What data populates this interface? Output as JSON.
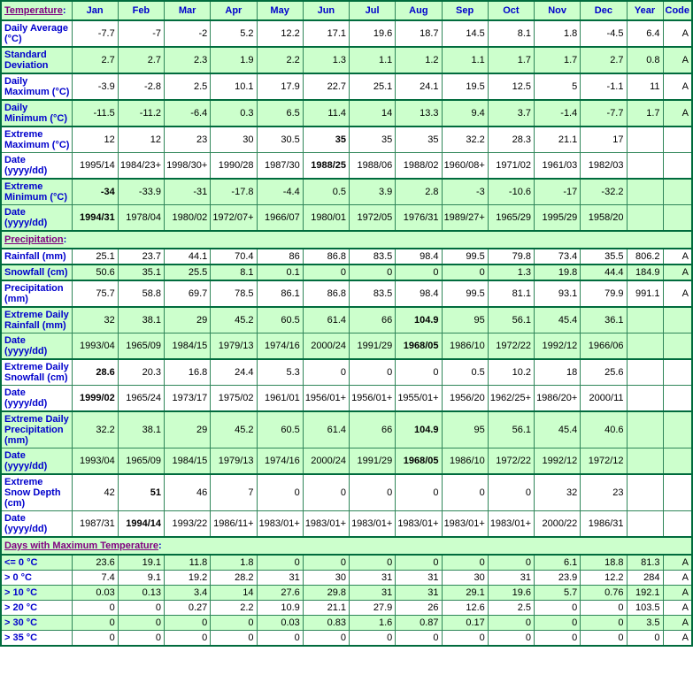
{
  "colors": {
    "table_green": "#ccffcc",
    "row_white": "#ffffff",
    "border": "#2f8659",
    "border_dark": "#006b3d",
    "label_blue": "#0000cc",
    "section_purple": "#800080",
    "value_black": "#000000"
  },
  "table": {
    "header": {
      "section": {
        "id": "temperature",
        "label": "Temperature",
        "suffix": ":"
      },
      "columns": [
        "Jan",
        "Feb",
        "Mar",
        "Apr",
        "May",
        "Jun",
        "Jul",
        "Aug",
        "Sep",
        "Oct",
        "Nov",
        "Dec",
        "Year",
        "Code"
      ]
    },
    "rows": [
      {
        "type": "data",
        "label": "Daily Average (°C)",
        "bg": "white",
        "heavy": true,
        "values": [
          "-7.7",
          "-7",
          "-2",
          "5.2",
          "12.2",
          "17.1",
          "19.6",
          "18.7",
          "14.5",
          "8.1",
          "1.8",
          "-4.5",
          "6.4",
          "A"
        ]
      },
      {
        "type": "data",
        "label": "Standard Deviation",
        "bg": "green",
        "heavy": true,
        "values": [
          "2.7",
          "2.7",
          "2.3",
          "1.9",
          "2.2",
          "1.3",
          "1.1",
          "1.2",
          "1.1",
          "1.7",
          "1.7",
          "2.7",
          "0.8",
          "A"
        ]
      },
      {
        "type": "data",
        "label": "Daily Maximum (°C)",
        "bg": "white",
        "heavy": true,
        "values": [
          "-3.9",
          "-2.8",
          "2.5",
          "10.1",
          "17.9",
          "22.7",
          "25.1",
          "24.1",
          "19.5",
          "12.5",
          "5",
          "-1.1",
          "11",
          "A"
        ]
      },
      {
        "type": "data",
        "label": "Daily Minimum (°C)",
        "bg": "green",
        "heavy": true,
        "values": [
          "-11.5",
          "-11.2",
          "-6.4",
          "0.3",
          "6.5",
          "11.4",
          "14",
          "13.3",
          "9.4",
          "3.7",
          "-1.4",
          "-7.7",
          "1.7",
          "A"
        ]
      },
      {
        "type": "data",
        "label": "Extreme Maximum (°C)",
        "bg": "white",
        "heavy": true,
        "bold": [
          5
        ],
        "values": [
          "12",
          "12",
          "23",
          "30",
          "30.5",
          "35",
          "35",
          "35",
          "32.2",
          "28.3",
          "21.1",
          "17",
          "",
          ""
        ]
      },
      {
        "type": "data",
        "label": "Date (yyyy/dd)",
        "bg": "white",
        "bold": [
          5
        ],
        "values": [
          "1995/14",
          "1984/23+",
          "1998/30+",
          "1990/28",
          "1987/30",
          "1988/25",
          "1988/06",
          "1988/02",
          "1960/08+",
          "1971/02",
          "1961/03",
          "1982/03",
          "",
          ""
        ]
      },
      {
        "type": "data",
        "label": "Extreme Minimum (°C)",
        "bg": "green",
        "heavy": true,
        "bold": [
          0
        ],
        "values": [
          "-34",
          "-33.9",
          "-31",
          "-17.8",
          "-4.4",
          "0.5",
          "3.9",
          "2.8",
          "-3",
          "-10.6",
          "-17",
          "-32.2",
          "",
          ""
        ]
      },
      {
        "type": "data",
        "label": "Date (yyyy/dd)",
        "bg": "green",
        "bold": [
          0
        ],
        "values": [
          "1994/31",
          "1978/04",
          "1980/02",
          "1972/07+",
          "1966/07",
          "1980/01",
          "1972/05",
          "1976/31",
          "1989/27+",
          "1965/29",
          "1995/29",
          "1958/20",
          "",
          ""
        ]
      },
      {
        "type": "section",
        "id": "precipitation",
        "label": "Precipitation",
        "suffix": ":"
      },
      {
        "type": "data",
        "label": "Rainfall (mm)",
        "bg": "white",
        "heavy": true,
        "values": [
          "25.1",
          "23.7",
          "44.1",
          "70.4",
          "86",
          "86.8",
          "83.5",
          "98.4",
          "99.5",
          "79.8",
          "73.4",
          "35.5",
          "806.2",
          "A"
        ]
      },
      {
        "type": "data",
        "label": "Snowfall (cm)",
        "bg": "green",
        "heavy": true,
        "values": [
          "50.6",
          "35.1",
          "25.5",
          "8.1",
          "0.1",
          "0",
          "0",
          "0",
          "0",
          "1.3",
          "19.8",
          "44.4",
          "184.9",
          "A"
        ]
      },
      {
        "type": "data",
        "label": "Precipitation (mm)",
        "bg": "white",
        "heavy": true,
        "values": [
          "75.7",
          "58.8",
          "69.7",
          "78.5",
          "86.1",
          "86.8",
          "83.5",
          "98.4",
          "99.5",
          "81.1",
          "93.1",
          "79.9",
          "991.1",
          "A"
        ]
      },
      {
        "type": "data",
        "label": "Extreme Daily Rainfall (mm)",
        "bg": "green",
        "heavy": true,
        "bold": [
          7
        ],
        "values": [
          "32",
          "38.1",
          "29",
          "45.2",
          "60.5",
          "61.4",
          "66",
          "104.9",
          "95",
          "56.1",
          "45.4",
          "36.1",
          "",
          ""
        ]
      },
      {
        "type": "data",
        "label": "Date (yyyy/dd)",
        "bg": "green",
        "bold": [
          7
        ],
        "values": [
          "1993/04",
          "1965/09",
          "1984/15",
          "1979/13",
          "1974/16",
          "2000/24",
          "1991/29",
          "1968/05",
          "1986/10",
          "1972/22",
          "1992/12",
          "1966/06",
          "",
          ""
        ]
      },
      {
        "type": "data",
        "label": "Extreme Daily Snowfall (cm)",
        "bg": "white",
        "heavy": true,
        "bold": [
          0
        ],
        "values": [
          "28.6",
          "20.3",
          "16.8",
          "24.4",
          "5.3",
          "0",
          "0",
          "0",
          "0.5",
          "10.2",
          "18",
          "25.6",
          "",
          ""
        ]
      },
      {
        "type": "data",
        "label": "Date (yyyy/dd)",
        "bg": "white",
        "bold": [
          0
        ],
        "values": [
          "1999/02",
          "1965/24",
          "1973/17",
          "1975/02",
          "1961/01",
          "1956/01+",
          "1956/01+",
          "1955/01+",
          "1956/20",
          "1962/25+",
          "1986/20+",
          "2000/11",
          "",
          ""
        ]
      },
      {
        "type": "data",
        "label": "Extreme Daily Precipitation (mm)",
        "bg": "green",
        "heavy": true,
        "bold": [
          7
        ],
        "values": [
          "32.2",
          "38.1",
          "29",
          "45.2",
          "60.5",
          "61.4",
          "66",
          "104.9",
          "95",
          "56.1",
          "45.4",
          "40.6",
          "",
          ""
        ]
      },
      {
        "type": "data",
        "label": "Date (yyyy/dd)",
        "bg": "green",
        "bold": [
          7
        ],
        "values": [
          "1993/04",
          "1965/09",
          "1984/15",
          "1979/13",
          "1974/16",
          "2000/24",
          "1991/29",
          "1968/05",
          "1986/10",
          "1972/22",
          "1992/12",
          "1972/12",
          "",
          ""
        ]
      },
      {
        "type": "data",
        "label": "Extreme Snow Depth (cm)",
        "bg": "white",
        "heavy": true,
        "bold": [
          1
        ],
        "values": [
          "42",
          "51",
          "46",
          "7",
          "0",
          "0",
          "0",
          "0",
          "0",
          "0",
          "32",
          "23",
          "",
          ""
        ]
      },
      {
        "type": "data",
        "label": "Date (yyyy/dd)",
        "bg": "white",
        "bold": [
          1
        ],
        "values": [
          "1987/31",
          "1994/14",
          "1993/22",
          "1986/11+",
          "1983/01+",
          "1983/01+",
          "1983/01+",
          "1983/01+",
          "1983/01+",
          "1983/01+",
          "2000/22",
          "1986/31",
          "",
          ""
        ]
      },
      {
        "type": "section",
        "id": "days-with-maximum-temperature",
        "label": "Days with Maximum Temperature",
        "suffix": ":"
      },
      {
        "type": "data",
        "label": "<= 0 °C",
        "bg": "green",
        "heavy": true,
        "values": [
          "23.6",
          "19.1",
          "11.8",
          "1.8",
          "0",
          "0",
          "0",
          "0",
          "0",
          "0",
          "6.1",
          "18.8",
          "81.3",
          "A"
        ]
      },
      {
        "type": "data",
        "label": "> 0 °C",
        "bg": "white",
        "values": [
          "7.4",
          "9.1",
          "19.2",
          "28.2",
          "31",
          "30",
          "31",
          "31",
          "30",
          "31",
          "23.9",
          "12.2",
          "284",
          "A"
        ]
      },
      {
        "type": "data",
        "label": "> 10 °C",
        "bg": "green",
        "values": [
          "0.03",
          "0.13",
          "3.4",
          "14",
          "27.6",
          "29.8",
          "31",
          "31",
          "29.1",
          "19.6",
          "5.7",
          "0.76",
          "192.1",
          "A"
        ]
      },
      {
        "type": "data",
        "label": "> 20 °C",
        "bg": "white",
        "values": [
          "0",
          "0",
          "0.27",
          "2.2",
          "10.9",
          "21.1",
          "27.9",
          "26",
          "12.6",
          "2.5",
          "0",
          "0",
          "103.5",
          "A"
        ]
      },
      {
        "type": "data",
        "label": "> 30 °C",
        "bg": "green",
        "values": [
          "0",
          "0",
          "0",
          "0",
          "0.03",
          "0.83",
          "1.6",
          "0.87",
          "0.17",
          "0",
          "0",
          "0",
          "3.5",
          "A"
        ]
      },
      {
        "type": "data",
        "label": "> 35 °C",
        "bg": "white",
        "values": [
          "0",
          "0",
          "0",
          "0",
          "0",
          "0",
          "0",
          "0",
          "0",
          "0",
          "0",
          "0",
          "0",
          "A"
        ]
      }
    ]
  }
}
